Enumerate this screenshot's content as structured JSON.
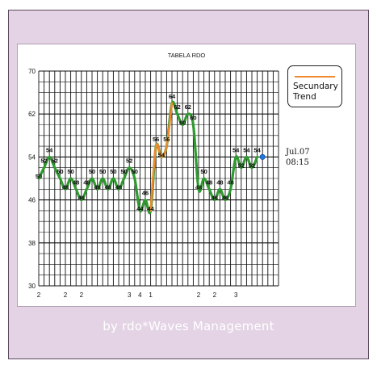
{
  "chart_data": {
    "type": "line",
    "title": "TABELA RDO",
    "xlabel": "",
    "ylabel": "",
    "ylim": [
      30,
      70
    ],
    "yticks": [
      30,
      38,
      46,
      54,
      62,
      70
    ],
    "x_count": 46,
    "x_tick_labels": [
      {
        "index": 0,
        "label": "2"
      },
      {
        "index": 5,
        "label": "2"
      },
      {
        "index": 8,
        "label": "2"
      },
      {
        "index": 17,
        "label": "3"
      },
      {
        "index": 19,
        "label": "4"
      },
      {
        "index": 21,
        "label": "1"
      },
      {
        "index": 30,
        "label": "2"
      },
      {
        "index": 33,
        "label": "2"
      },
      {
        "index": 37,
        "label": "3"
      }
    ],
    "grid": true,
    "legend": {
      "position": "right",
      "entries": [
        "Secundary Trend"
      ]
    },
    "series": [
      {
        "color": "#2f9a2f",
        "points": [
          [
            0,
            50
          ],
          [
            1,
            52
          ],
          [
            2,
            54
          ],
          [
            3,
            52
          ],
          [
            4,
            50
          ],
          [
            5,
            48
          ],
          [
            6,
            50
          ],
          [
            7,
            48
          ],
          [
            8,
            46
          ],
          [
            9,
            48
          ],
          [
            10,
            50
          ],
          [
            11,
            48
          ],
          [
            12,
            50
          ],
          [
            13,
            48
          ],
          [
            14,
            50
          ],
          [
            15,
            48
          ],
          [
            16,
            50
          ],
          [
            17,
            52
          ],
          [
            18,
            50
          ],
          [
            19,
            44
          ],
          [
            20,
            46
          ],
          [
            21,
            44
          ],
          [
            22,
            56
          ],
          [
            23,
            54
          ],
          [
            24,
            56
          ],
          [
            25,
            64
          ],
          [
            26,
            62
          ],
          [
            27,
            60
          ],
          [
            28,
            62
          ],
          [
            29,
            60
          ],
          [
            30,
            48
          ],
          [
            31,
            50
          ],
          [
            32,
            48
          ],
          [
            33,
            46
          ],
          [
            34,
            48
          ],
          [
            35,
            46
          ],
          [
            36,
            48
          ],
          [
            37,
            54
          ],
          [
            38,
            52
          ],
          [
            39,
            54
          ],
          [
            40,
            52
          ],
          [
            41,
            54
          ]
        ],
        "point_labels": [
          [
            0,
            "50"
          ],
          [
            1,
            "52"
          ],
          [
            2,
            "54"
          ],
          [
            3,
            "52"
          ],
          [
            4,
            "50"
          ],
          [
            5,
            "48"
          ],
          [
            6,
            "50"
          ],
          [
            7,
            "48"
          ],
          [
            8,
            "46"
          ],
          [
            9,
            "48"
          ],
          [
            10,
            "50"
          ],
          [
            11,
            "48"
          ],
          [
            12,
            "50"
          ],
          [
            13,
            "48"
          ],
          [
            14,
            "50"
          ],
          [
            15,
            "48"
          ],
          [
            16,
            "50"
          ],
          [
            17,
            "52"
          ],
          [
            18,
            "50"
          ],
          [
            19,
            "44"
          ],
          [
            20,
            "46"
          ],
          [
            21,
            "44"
          ],
          [
            22,
            "56"
          ],
          [
            23,
            "54"
          ],
          [
            24,
            "56"
          ],
          [
            25,
            "64"
          ],
          [
            26,
            "62"
          ],
          [
            27,
            "60"
          ],
          [
            28,
            "62"
          ],
          [
            29,
            "60"
          ],
          [
            30,
            "48"
          ],
          [
            31,
            "50"
          ],
          [
            32,
            "48"
          ],
          [
            33,
            "46"
          ],
          [
            34,
            "48"
          ],
          [
            35,
            "46"
          ],
          [
            36,
            "48"
          ],
          [
            37,
            "54"
          ],
          [
            38,
            "52"
          ],
          [
            39,
            "54"
          ],
          [
            40,
            "52"
          ],
          [
            41,
            "54"
          ]
        ]
      },
      {
        "name": "Secundary Trend",
        "color": "#f08a2c",
        "points": [
          [
            21,
            44
          ],
          [
            22,
            56
          ],
          [
            23,
            54
          ],
          [
            24,
            56
          ],
          [
            25,
            64
          ]
        ]
      }
    ],
    "highlight_point": {
      "index": 42,
      "value": 54,
      "color": "#2277dd"
    },
    "annotation": {
      "lines": [
        "Jul.07",
        "08:15"
      ]
    }
  },
  "legend": {
    "label_line1": "Secundary",
    "label_line2": "Trend"
  },
  "footer": {
    "credit": "by rdo*Waves Management"
  }
}
